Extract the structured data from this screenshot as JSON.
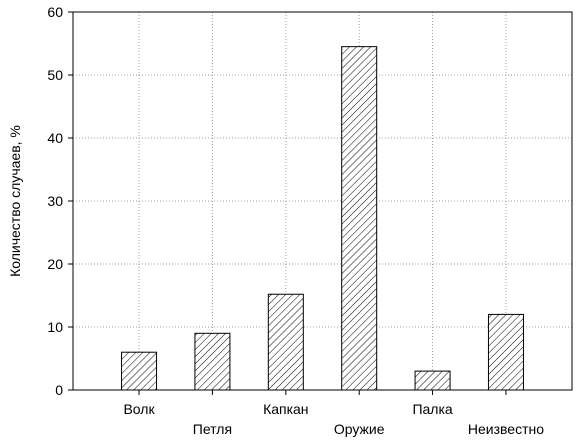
{
  "chart_data": {
    "type": "bar",
    "ylabel": "Количество случаев, %",
    "xlabel": "",
    "ylim": [
      0,
      60
    ],
    "yticks": [
      0,
      10,
      20,
      30,
      40,
      50,
      60
    ],
    "grid": true,
    "categories": [
      "Волк",
      "Петля",
      "Капкан",
      "Оружие",
      "Палка",
      "Неизвестно"
    ],
    "values": [
      6,
      9,
      15.2,
      54.5,
      3,
      12
    ],
    "bar_fill": "diagonal-hatch",
    "colors": {
      "bar_stroke": "#000000",
      "grid": "#a0a0a0",
      "axis": "#000000"
    }
  }
}
